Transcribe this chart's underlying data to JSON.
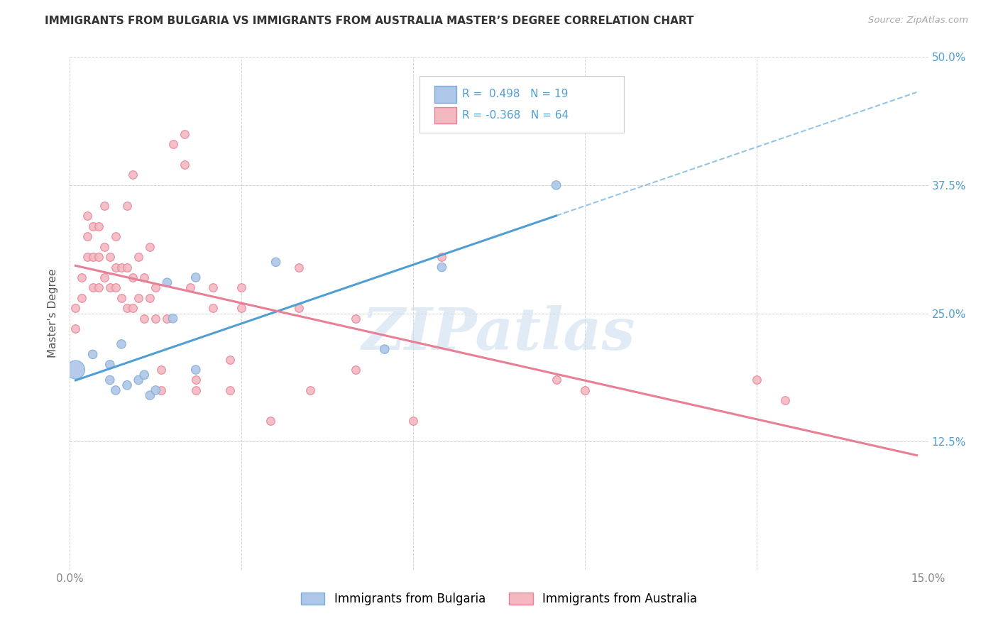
{
  "title": "IMMIGRANTS FROM BULGARIA VS IMMIGRANTS FROM AUSTRALIA MASTER’S DEGREE CORRELATION CHART",
  "source": "Source: ZipAtlas.com",
  "ylabel": "Master's Degree",
  "xlim": [
    0.0,
    0.15
  ],
  "ylim": [
    0.0,
    0.5
  ],
  "xticks": [
    0.0,
    0.03,
    0.06,
    0.09,
    0.12,
    0.15
  ],
  "xticklabels": [
    "0.0%",
    "",
    "",
    "",
    "",
    "15.0%"
  ],
  "yticks": [
    0.0,
    0.125,
    0.25,
    0.375,
    0.5
  ],
  "yticklabels_right": [
    "",
    "12.5%",
    "25.0%",
    "37.5%",
    "50.0%"
  ],
  "bg_color": "#ffffff",
  "grid_color": "#c8c8c8",
  "bulgaria_color": "#aec6e8",
  "australia_color": "#f4b8c1",
  "bulgaria_edge": "#7badd4",
  "australia_edge": "#e87f94",
  "trend_blue": "#4f9fd4",
  "trend_pink": "#e87f94",
  "R_bulgaria": 0.498,
  "N_bulgaria": 19,
  "R_australia": -0.368,
  "N_australia": 64,
  "legend_label_bulgaria": "Immigrants from Bulgaria",
  "legend_label_australia": "Immigrants from Australia",
  "bulgaria_x": [
    0.001,
    0.004,
    0.007,
    0.007,
    0.008,
    0.009,
    0.01,
    0.012,
    0.013,
    0.014,
    0.015,
    0.017,
    0.018,
    0.022,
    0.022,
    0.036,
    0.055,
    0.065,
    0.085
  ],
  "bulgaria_y": [
    0.195,
    0.21,
    0.185,
    0.2,
    0.175,
    0.22,
    0.18,
    0.185,
    0.19,
    0.17,
    0.175,
    0.28,
    0.245,
    0.195,
    0.285,
    0.3,
    0.215,
    0.295,
    0.375
  ],
  "bulgaria_size": [
    350,
    80,
    80,
    80,
    80,
    80,
    80,
    80,
    80,
    80,
    80,
    80,
    80,
    80,
    80,
    80,
    80,
    80,
    80
  ],
  "australia_x": [
    0.001,
    0.001,
    0.002,
    0.002,
    0.003,
    0.003,
    0.003,
    0.004,
    0.004,
    0.004,
    0.005,
    0.005,
    0.005,
    0.006,
    0.006,
    0.006,
    0.007,
    0.007,
    0.008,
    0.008,
    0.008,
    0.009,
    0.009,
    0.01,
    0.01,
    0.01,
    0.011,
    0.011,
    0.011,
    0.012,
    0.012,
    0.013,
    0.013,
    0.014,
    0.014,
    0.015,
    0.015,
    0.016,
    0.016,
    0.017,
    0.018,
    0.02,
    0.02,
    0.021,
    0.022,
    0.022,
    0.025,
    0.025,
    0.028,
    0.028,
    0.03,
    0.03,
    0.035,
    0.04,
    0.04,
    0.042,
    0.05,
    0.05,
    0.06,
    0.065,
    0.085,
    0.09,
    0.12,
    0.125
  ],
  "australia_y": [
    0.255,
    0.235,
    0.265,
    0.285,
    0.305,
    0.325,
    0.345,
    0.275,
    0.305,
    0.335,
    0.275,
    0.305,
    0.335,
    0.285,
    0.315,
    0.355,
    0.275,
    0.305,
    0.275,
    0.295,
    0.325,
    0.265,
    0.295,
    0.255,
    0.295,
    0.355,
    0.255,
    0.285,
    0.385,
    0.265,
    0.305,
    0.245,
    0.285,
    0.265,
    0.315,
    0.245,
    0.275,
    0.175,
    0.195,
    0.245,
    0.415,
    0.395,
    0.425,
    0.275,
    0.175,
    0.185,
    0.255,
    0.275,
    0.175,
    0.205,
    0.255,
    0.275,
    0.145,
    0.255,
    0.295,
    0.175,
    0.195,
    0.245,
    0.145,
    0.305,
    0.185,
    0.175,
    0.185,
    0.165
  ],
  "watermark": "ZIPatlas",
  "watermark_color": "#c8dcf0",
  "blue_line_start_x": 0.001,
  "blue_line_end_solid_x": 0.085,
  "blue_line_end_dash_x": 0.148,
  "pink_line_start_x": 0.001,
  "pink_line_end_x": 0.148
}
